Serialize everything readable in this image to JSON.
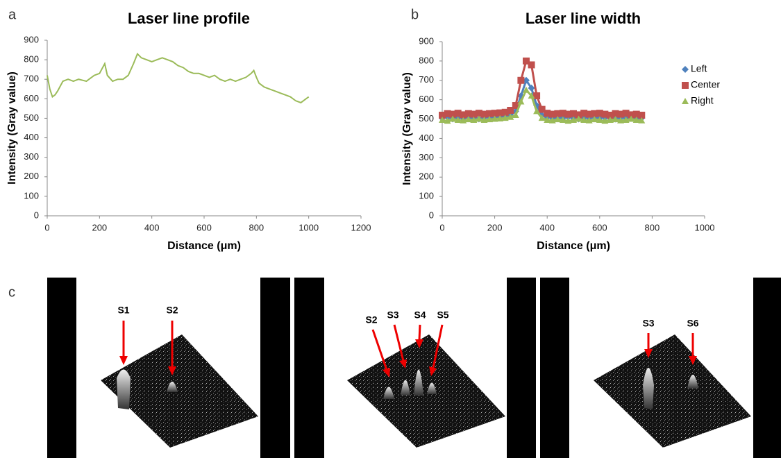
{
  "chart_data": [
    {
      "type": "line",
      "title": "Laser line profile",
      "xlabel": "Distance (μm)",
      "ylabel": "Intensity (Gray value)",
      "x": [
        0,
        10,
        20,
        30,
        40,
        60,
        80,
        100,
        120,
        150,
        180,
        200,
        220,
        230,
        250,
        270,
        290,
        310,
        330,
        345,
        360,
        380,
        400,
        420,
        440,
        460,
        480,
        500,
        520,
        540,
        560,
        580,
        600,
        620,
        640,
        660,
        680,
        700,
        720,
        740,
        760,
        780,
        790,
        800,
        810,
        830,
        850,
        870,
        890,
        910,
        930,
        950,
        970,
        990,
        1000
      ],
      "values": [
        720,
        650,
        610,
        620,
        640,
        690,
        700,
        690,
        700,
        690,
        720,
        730,
        780,
        720,
        690,
        700,
        700,
        720,
        780,
        830,
        810,
        800,
        790,
        800,
        810,
        800,
        790,
        770,
        760,
        740,
        730,
        730,
        720,
        710,
        720,
        700,
        690,
        700,
        690,
        700,
        710,
        730,
        745,
        710,
        680,
        660,
        650,
        640,
        630,
        620,
        610,
        590,
        580,
        600,
        610
      ],
      "color": "#9bbb59",
      "xlim": [
        0,
        1200
      ],
      "xticks": [
        0,
        200,
        400,
        600,
        800,
        1000,
        1200
      ],
      "ylim": [
        0,
        900
      ],
      "yticks": [
        0,
        100,
        200,
        300,
        400,
        500,
        600,
        700,
        800,
        900
      ]
    },
    {
      "type": "line",
      "title": "Laser line width",
      "xlabel": "Distance (μm)",
      "ylabel": "Intensity (Gray value)",
      "x": [
        0,
        20,
        40,
        60,
        80,
        100,
        120,
        140,
        160,
        180,
        200,
        220,
        240,
        260,
        280,
        300,
        320,
        340,
        360,
        380,
        400,
        420,
        440,
        460,
        480,
        500,
        520,
        540,
        560,
        580,
        600,
        620,
        640,
        660,
        680,
        700,
        720,
        740,
        760
      ],
      "series": [
        {
          "name": "Left",
          "color": "#4f81bd",
          "marker": "diamond",
          "values": [
            505,
            510,
            500,
            508,
            505,
            510,
            505,
            500,
            508,
            510,
            505,
            510,
            515,
            520,
            540,
            620,
            700,
            660,
            570,
            520,
            510,
            505,
            508,
            505,
            510,
            505,
            500,
            508,
            505,
            510,
            505,
            508,
            505,
            500,
            508,
            505,
            510,
            505,
            505
          ]
        },
        {
          "name": "Center",
          "color": "#c0504d",
          "marker": "square",
          "values": [
            520,
            528,
            525,
            530,
            522,
            528,
            525,
            530,
            525,
            528,
            530,
            532,
            535,
            545,
            570,
            700,
            800,
            780,
            620,
            550,
            530,
            525,
            528,
            530,
            525,
            528,
            522,
            530,
            525,
            528,
            530,
            525,
            520,
            528,
            525,
            530,
            522,
            525,
            520
          ]
        },
        {
          "name": "Right",
          "color": "#9bbb59",
          "marker": "triangle",
          "values": [
            495,
            490,
            500,
            495,
            492,
            498,
            495,
            500,
            495,
            498,
            500,
            502,
            505,
            510,
            520,
            590,
            650,
            620,
            540,
            505,
            495,
            492,
            498,
            495,
            490,
            495,
            500,
            495,
            492,
            498,
            495,
            490,
            495,
            498,
            492,
            495,
            500,
            495,
            492
          ]
        }
      ],
      "legend": "right",
      "xlim": [
        0,
        1000
      ],
      "xticks": [
        0,
        200,
        400,
        600,
        800,
        1000
      ],
      "ylim": [
        0,
        900
      ],
      "yticks": [
        0,
        100,
        200,
        300,
        400,
        500,
        600,
        700,
        800,
        900
      ]
    }
  ],
  "panel_labels": [
    "a",
    "b",
    "c"
  ],
  "images": [
    {
      "peaks": [
        "S1",
        "S2"
      ]
    },
    {
      "peaks": [
        "S2",
        "S3",
        "S4",
        "S5"
      ]
    },
    {
      "peaks": [
        "S3",
        "S6"
      ]
    }
  ]
}
